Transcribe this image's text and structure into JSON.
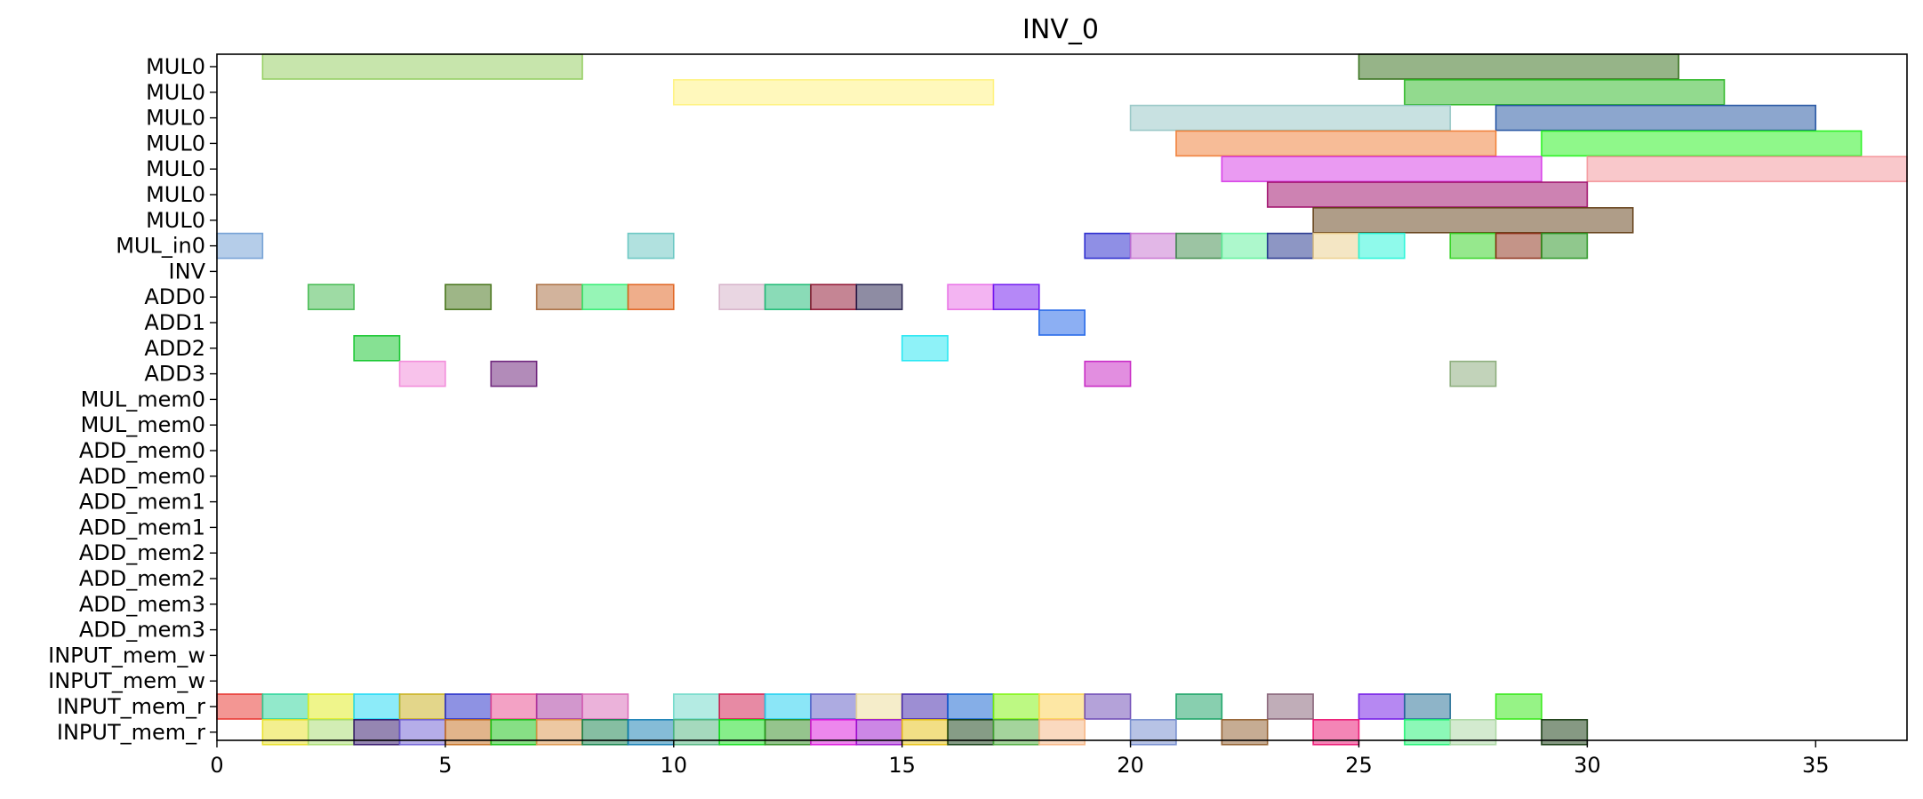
{
  "chart_data": {
    "type": "gantt",
    "title": "INV_0",
    "xlim": [
      0,
      37
    ],
    "xticks": [
      0,
      5,
      10,
      15,
      20,
      25,
      30,
      35
    ],
    "grid": false,
    "rows": [
      "MUL0",
      "MUL0",
      "MUL0",
      "MUL0",
      "MUL0",
      "MUL0",
      "MUL0",
      "MUL_in0",
      "INV",
      "ADD0",
      "ADD1",
      "ADD2",
      "ADD3",
      "MUL_mem0",
      "MUL_mem0",
      "ADD_mem0",
      "ADD_mem0",
      "ADD_mem1",
      "ADD_mem1",
      "ADD_mem2",
      "ADD_mem2",
      "ADD_mem3",
      "ADD_mem3",
      "INPUT_mem_w",
      "INPUT_mem_w",
      "INPUT_mem_r",
      "INPUT_mem_r"
    ],
    "bars": [
      {
        "row": 0,
        "start": 1,
        "end": 8,
        "color": "#8fcc5a"
      },
      {
        "row": 0,
        "start": 25,
        "end": 32,
        "color": "#2e6a12"
      },
      {
        "row": 1,
        "start": 10,
        "end": 17,
        "color": "#fff27a"
      },
      {
        "row": 1,
        "start": 26,
        "end": 33,
        "color": "#26b51e"
      },
      {
        "row": 2,
        "start": 20,
        "end": 27,
        "color": "#92c4c3"
      },
      {
        "row": 2,
        "start": 28,
        "end": 35,
        "color": "#1a4d9e"
      },
      {
        "row": 3,
        "start": 21,
        "end": 28,
        "color": "#ef7a30"
      },
      {
        "row": 3,
        "start": 29,
        "end": 36,
        "color": "#1ff216"
      },
      {
        "row": 4,
        "start": 22,
        "end": 29,
        "color": "#d536e6"
      },
      {
        "row": 4,
        "start": 30,
        "end": 37,
        "color": "#f49298"
      },
      {
        "row": 5,
        "start": 23,
        "end": 30,
        "color": "#9c0566"
      },
      {
        "row": 6,
        "start": 24,
        "end": 31,
        "color": "#5f3b12"
      },
      {
        "row": 7,
        "start": 0,
        "end": 1,
        "color": "#6c9bd3"
      },
      {
        "row": 7,
        "start": 9,
        "end": 10,
        "color": "#63c4c0"
      },
      {
        "row": 7,
        "start": 19,
        "end": 20,
        "color": "#1f1fcc"
      },
      {
        "row": 7,
        "start": 20,
        "end": 21,
        "color": "#c56fcf"
      },
      {
        "row": 7,
        "start": 21,
        "end": 22,
        "color": "#3a8a48"
      },
      {
        "row": 7,
        "start": 22,
        "end": 23,
        "color": "#5cf29a"
      },
      {
        "row": 7,
        "start": 23,
        "end": 24,
        "color": "#1c2d8a"
      },
      {
        "row": 7,
        "start": 24,
        "end": 25,
        "color": "#eacd8a"
      },
      {
        "row": 7,
        "start": 25,
        "end": 26,
        "color": "#1ff5d7"
      },
      {
        "row": 7,
        "start": 27,
        "end": 28,
        "color": "#2ed11c"
      },
      {
        "row": 7,
        "start": 28,
        "end": 29,
        "color": "#8a2a12"
      },
      {
        "row": 7,
        "start": 29,
        "end": 30,
        "color": "#22921c"
      },
      {
        "row": 9,
        "start": 2,
        "end": 3,
        "color": "#3db84a"
      },
      {
        "row": 9,
        "start": 5,
        "end": 6,
        "color": "#3e6e10"
      },
      {
        "row": 9,
        "start": 7,
        "end": 8,
        "color": "#a6683a"
      },
      {
        "row": 9,
        "start": 8,
        "end": 9,
        "color": "#2eec6e"
      },
      {
        "row": 9,
        "start": 9,
        "end": 10,
        "color": "#df5e18"
      },
      {
        "row": 9,
        "start": 11,
        "end": 12,
        "color": "#d4aec6"
      },
      {
        "row": 9,
        "start": 12,
        "end": 13,
        "color": "#15b870"
      },
      {
        "row": 9,
        "start": 13,
        "end": 14,
        "color": "#8c0c2a"
      },
      {
        "row": 9,
        "start": 14,
        "end": 15,
        "color": "#1e1a48"
      },
      {
        "row": 9,
        "start": 16,
        "end": 17,
        "color": "#e86ae6"
      },
      {
        "row": 9,
        "start": 17,
        "end": 18,
        "color": "#6c12f0"
      },
      {
        "row": 10,
        "start": 18,
        "end": 19,
        "color": "#1960e8"
      },
      {
        "row": 11,
        "start": 3,
        "end": 4,
        "color": "#0ec428"
      },
      {
        "row": 11,
        "start": 15,
        "end": 16,
        "color": "#1ee6f2"
      },
      {
        "row": 12,
        "start": 4,
        "end": 5,
        "color": "#f286d8"
      },
      {
        "row": 12,
        "start": 6,
        "end": 7,
        "color": "#661874"
      },
      {
        "row": 12,
        "start": 19,
        "end": 20,
        "color": "#c51ec2"
      },
      {
        "row": 12,
        "start": 27,
        "end": 28,
        "color": "#86a876"
      },
      {
        "row": 25,
        "start": 0,
        "end": 1,
        "color": "#e82e28"
      },
      {
        "row": 25,
        "start": 1,
        "end": 2,
        "color": "#26d498"
      },
      {
        "row": 25,
        "start": 2,
        "end": 3,
        "color": "#e0ec18"
      },
      {
        "row": 25,
        "start": 3,
        "end": 4,
        "color": "#1ad8f4"
      },
      {
        "row": 25,
        "start": 4,
        "end": 5,
        "color": "#c8ae16"
      },
      {
        "row": 25,
        "start": 5,
        "end": 6,
        "color": "#1e26c8"
      },
      {
        "row": 25,
        "start": 6,
        "end": 7,
        "color": "#e8468c"
      },
      {
        "row": 25,
        "start": 7,
        "end": 8,
        "color": "#a6309c"
      },
      {
        "row": 25,
        "start": 8,
        "end": 9,
        "color": "#d866b6"
      },
      {
        "row": 25,
        "start": 10,
        "end": 11,
        "color": "#6ad8c8"
      },
      {
        "row": 25,
        "start": 11,
        "end": 12,
        "color": "#d0164a"
      },
      {
        "row": 25,
        "start": 12,
        "end": 13,
        "color": "#18cef0"
      },
      {
        "row": 25,
        "start": 13,
        "end": 14,
        "color": "#5c58c4"
      },
      {
        "row": 25,
        "start": 14,
        "end": 15,
        "color": "#ecdc96"
      },
      {
        "row": 25,
        "start": 15,
        "end": 16,
        "color": "#3c1ea8"
      },
      {
        "row": 25,
        "start": 16,
        "end": 17,
        "color": "#0c5ed0"
      },
      {
        "row": 25,
        "start": 17,
        "end": 18,
        "color": "#7cf408"
      },
      {
        "row": 25,
        "start": 18,
        "end": 19,
        "color": "#fcd04a"
      },
      {
        "row": 25,
        "start": 19,
        "end": 20,
        "color": "#6a46b4"
      },
      {
        "row": 25,
        "start": 21,
        "end": 22,
        "color": "#12a060"
      },
      {
        "row": 25,
        "start": 23,
        "end": 24,
        "color": "#825c72"
      },
      {
        "row": 25,
        "start": 25,
        "end": 26,
        "color": "#6e12e6"
      },
      {
        "row": 25,
        "start": 26,
        "end": 27,
        "color": "#1e6a92"
      },
      {
        "row": 25,
        "start": 28,
        "end": 29,
        "color": "#2ee80e"
      },
      {
        "row": 26,
        "start": 1,
        "end": 2,
        "color": "#e8e020"
      },
      {
        "row": 26,
        "start": 2,
        "end": 3,
        "color": "#a6dc6a"
      },
      {
        "row": 26,
        "start": 3,
        "end": 4,
        "color": "#2c0e66"
      },
      {
        "row": 26,
        "start": 4,
        "end": 5,
        "color": "#6c5cd4"
      },
      {
        "row": 26,
        "start": 5,
        "end": 6,
        "color": "#c46a18"
      },
      {
        "row": 26,
        "start": 6,
        "end": 7,
        "color": "#10c00c"
      },
      {
        "row": 26,
        "start": 7,
        "end": 8,
        "color": "#dc9246"
      },
      {
        "row": 26,
        "start": 8,
        "end": 9,
        "color": "#0e7e46"
      },
      {
        "row": 26,
        "start": 9,
        "end": 10,
        "color": "#0c7ab0"
      },
      {
        "row": 26,
        "start": 10,
        "end": 11,
        "color": "#4cb47c"
      },
      {
        "row": 26,
        "start": 11,
        "end": 12,
        "color": "#0ede16"
      },
      {
        "row": 26,
        "start": 12,
        "end": 13,
        "color": "#2c8a1c"
      },
      {
        "row": 26,
        "start": 13,
        "end": 14,
        "color": "#dc10dc"
      },
      {
        "row": 26,
        "start": 14,
        "end": 15,
        "color": "#9a10cc"
      },
      {
        "row": 26,
        "start": 15,
        "end": 16,
        "color": "#e6c00c"
      },
      {
        "row": 26,
        "start": 16,
        "end": 17,
        "color": "#0e3a0e"
      },
      {
        "row": 26,
        "start": 17,
        "end": 18,
        "color": "#4aaa3a"
      },
      {
        "row": 26,
        "start": 18,
        "end": 19,
        "color": "#f6b480"
      },
      {
        "row": 26,
        "start": 20,
        "end": 21,
        "color": "#7088cc"
      },
      {
        "row": 26,
        "start": 22,
        "end": 23,
        "color": "#8e5a28"
      },
      {
        "row": 26,
        "start": 24,
        "end": 25,
        "color": "#ea0c6e"
      },
      {
        "row": 26,
        "start": 26,
        "end": 27,
        "color": "#1af270"
      },
      {
        "row": 26,
        "start": 27,
        "end": 28,
        "color": "#a8d6a0"
      },
      {
        "row": 26,
        "start": 29,
        "end": 30,
        "color": "#0e3408"
      }
    ]
  }
}
